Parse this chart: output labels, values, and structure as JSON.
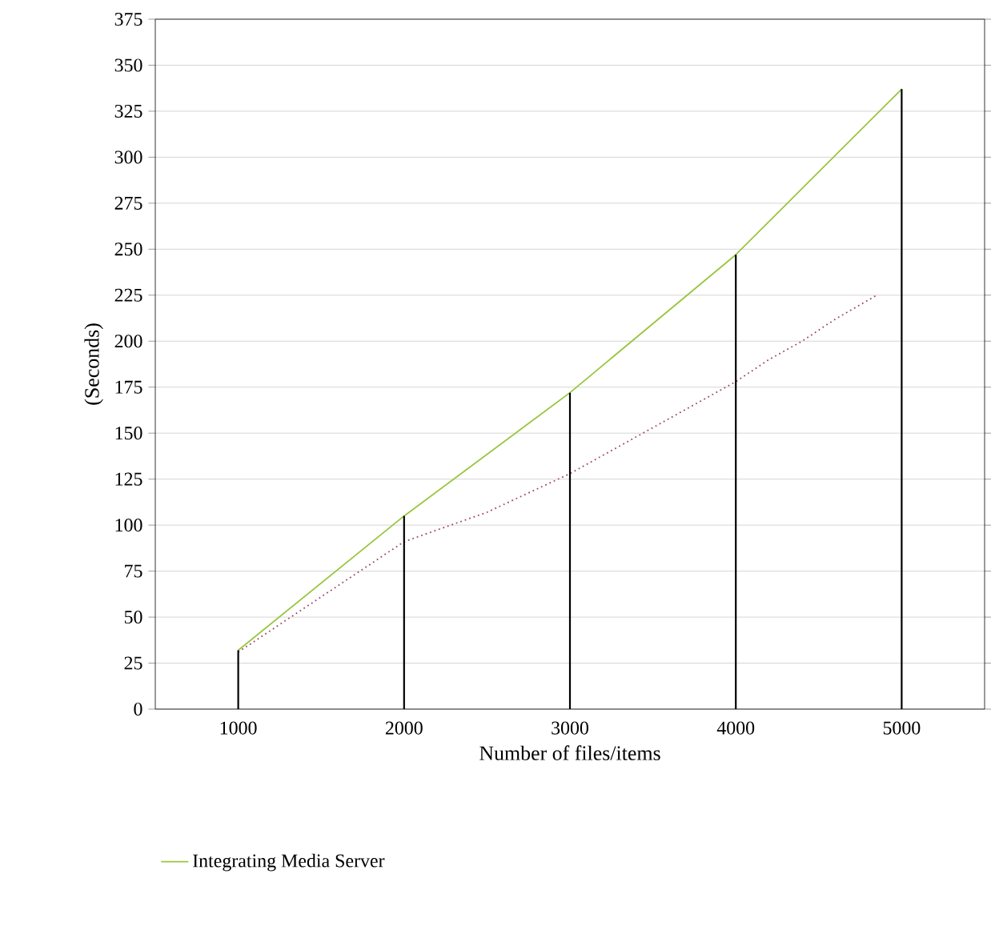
{
  "chart_data": {
    "type": "line",
    "xlabel": "Number of files/items",
    "ylabel": "(Seconds)",
    "xlim": [
      500,
      5500
    ],
    "xticks": [
      1000,
      2000,
      3000,
      4000,
      5000
    ],
    "ylim": [
      0,
      375
    ],
    "yticks": [
      0,
      25,
      50,
      75,
      100,
      125,
      150,
      175,
      200,
      225,
      250,
      275,
      300,
      325,
      350,
      375
    ],
    "grid": "y",
    "legend": "bottom left",
    "series": [
      {
        "line_style": "dotted",
        "color": "#a0456e",
        "x": [
          1000,
          1500,
          2000,
          2500,
          3000,
          3500,
          4000,
          4200,
          4400,
          4600,
          4850
        ],
        "values": [
          31,
          61,
          91,
          107,
          128,
          153,
          178,
          190,
          200,
          212,
          225
        ]
      },
      {
        "line_style": "solid",
        "name": "Integrating Media Server",
        "color": "#9ac53e",
        "x": [
          1000,
          2000,
          3000,
          4000,
          5000
        ],
        "values": [
          32,
          105,
          172,
          247,
          337
        ]
      },
      {
        "type": "bar",
        "color": "#000000",
        "x": [
          1000,
          2000,
          3000,
          4000,
          5000
        ],
        "values": [
          32,
          105,
          172,
          247,
          337
        ]
      }
    ]
  }
}
